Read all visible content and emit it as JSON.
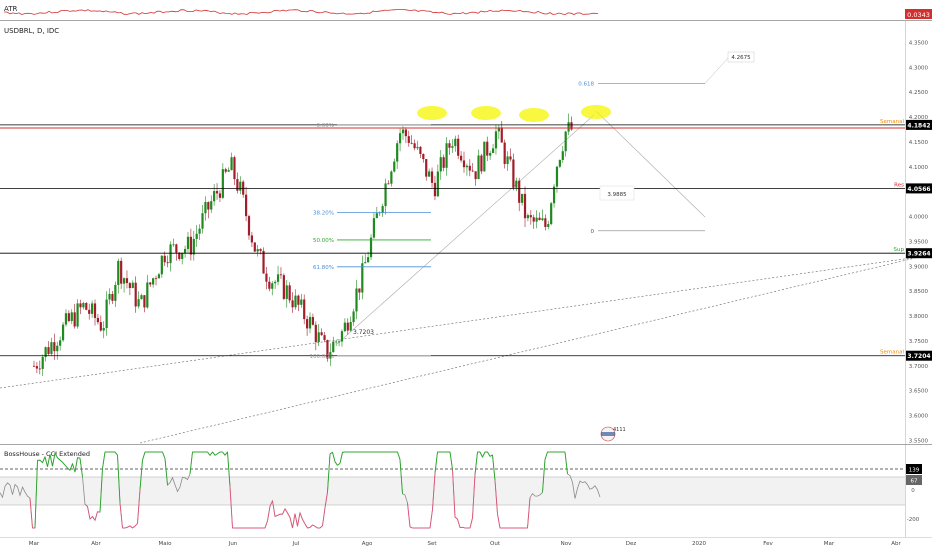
{
  "colors": {
    "bull": "#1f8a1f",
    "bear": "#a11d2b",
    "grid_line": "#000000",
    "red_line": "#d32f2f",
    "price_label_bg": "#000000",
    "atr_label_bg": "#d32f2f",
    "fib_blue": "#4a90d9",
    "fib_green": "#2aa82a",
    "highlight": "#f5f500",
    "orange_text": "#f08a00",
    "red_text": "#d32f2f",
    "green_text": "#2aa82a",
    "cci_line": "#8a8a8a",
    "cci_up": "#2aa82a",
    "cci_down": "#e0567a"
  },
  "atr_panel": {
    "label": "ATR",
    "value_label": "0.0343"
  },
  "main_panel": {
    "symbol_label": "USDBRL, D, IDC"
  },
  "cci_panel": {
    "label": "BossHouse - CCI Extended"
  },
  "chart_data": [
    {
      "type": "candlestick",
      "x_axis": {
        "labels": [
          "Mar",
          "Abr",
          "Maio",
          "Jun",
          "Jul",
          "Ago",
          "Set",
          "Out",
          "Nov",
          "Dez",
          "2020",
          "Fev",
          "Mar",
          "Abr"
        ]
      },
      "y_axis": {
        "range": [
          3.545,
          4.395
        ],
        "ticks": [
          "4.3500",
          "4.3000",
          "4.2500",
          "4.2000",
          "4.1500",
          "4.1000",
          "4.0500",
          "4.0000",
          "3.9500",
          "3.9000",
          "3.8500",
          "3.8000",
          "3.7500",
          "3.7000",
          "3.6500",
          "3.6000",
          "3.5500"
        ]
      },
      "price_path": [
        {
          "m": 0.0,
          "v": 3.7
        },
        {
          "m": 0.5,
          "v": 3.78
        },
        {
          "m": 0.8,
          "v": 3.82
        },
        {
          "m": 1.1,
          "v": 3.78
        },
        {
          "m": 1.35,
          "v": 3.9
        },
        {
          "m": 1.7,
          "v": 3.82
        },
        {
          "m": 2.1,
          "v": 3.93
        },
        {
          "m": 2.5,
          "v": 3.94
        },
        {
          "m": 2.8,
          "v": 4.02
        },
        {
          "m": 3.15,
          "v": 4.1
        },
        {
          "m": 3.3,
          "v": 4.05
        },
        {
          "m": 3.55,
          "v": 3.93
        },
        {
          "m": 3.75,
          "v": 3.88
        },
        {
          "m": 4.05,
          "v": 3.85
        },
        {
          "m": 4.45,
          "v": 3.78
        },
        {
          "m": 4.68,
          "v": 3.725
        },
        {
          "m": 4.95,
          "v": 3.77
        },
        {
          "m": 5.25,
          "v": 3.88
        },
        {
          "m": 5.55,
          "v": 4.03
        },
        {
          "m": 5.85,
          "v": 4.17
        },
        {
          "m": 6.0,
          "v": 4.16
        },
        {
          "m": 6.4,
          "v": 4.06
        },
        {
          "m": 6.7,
          "v": 4.16
        },
        {
          "m": 7.05,
          "v": 4.09
        },
        {
          "m": 7.4,
          "v": 4.17
        },
        {
          "m": 7.6,
          "v": 4.1
        },
        {
          "m": 7.9,
          "v": 3.99
        },
        {
          "m": 8.2,
          "v": 3.98
        },
        {
          "m": 8.35,
          "v": 4.1
        },
        {
          "m": 8.5,
          "v": 4.17
        },
        {
          "m": 8.6,
          "v": 4.175
        }
      ],
      "horizontal_levels": [
        {
          "price": 4.1842,
          "label": "4.1842",
          "tag": "Semanal"
        },
        {
          "price": 4.0566,
          "label": "4.0566",
          "tag": "Res"
        },
        {
          "price": 3.9264,
          "label": "3.9264",
          "tag": "Sup"
        },
        {
          "price": 3.7204,
          "label": "3.7204",
          "tag": "Semanal"
        }
      ],
      "fibonacci": [
        {
          "level": "0.00%",
          "price": 4.184
        },
        {
          "level": "38.20%",
          "price": 4.008
        },
        {
          "level": "50.00%",
          "price": 3.953
        },
        {
          "level": "61.80%",
          "price": 3.899
        },
        {
          "level": "100.00%",
          "price": 3.72
        }
      ],
      "projection": {
        "level_0618": {
          "label": "0.618",
          "value_label": "4.2675"
        },
        "level_0": {
          "label": "0",
          "value_label": "3.9885"
        }
      },
      "annotation_low": "3.7203",
      "watermark_value": "4111"
    },
    {
      "type": "line",
      "panel": "cci",
      "y_axis": {
        "ticks": [
          "139",
          "67",
          "0",
          "-200"
        ]
      },
      "value_labels": [
        "139",
        "67"
      ]
    }
  ]
}
